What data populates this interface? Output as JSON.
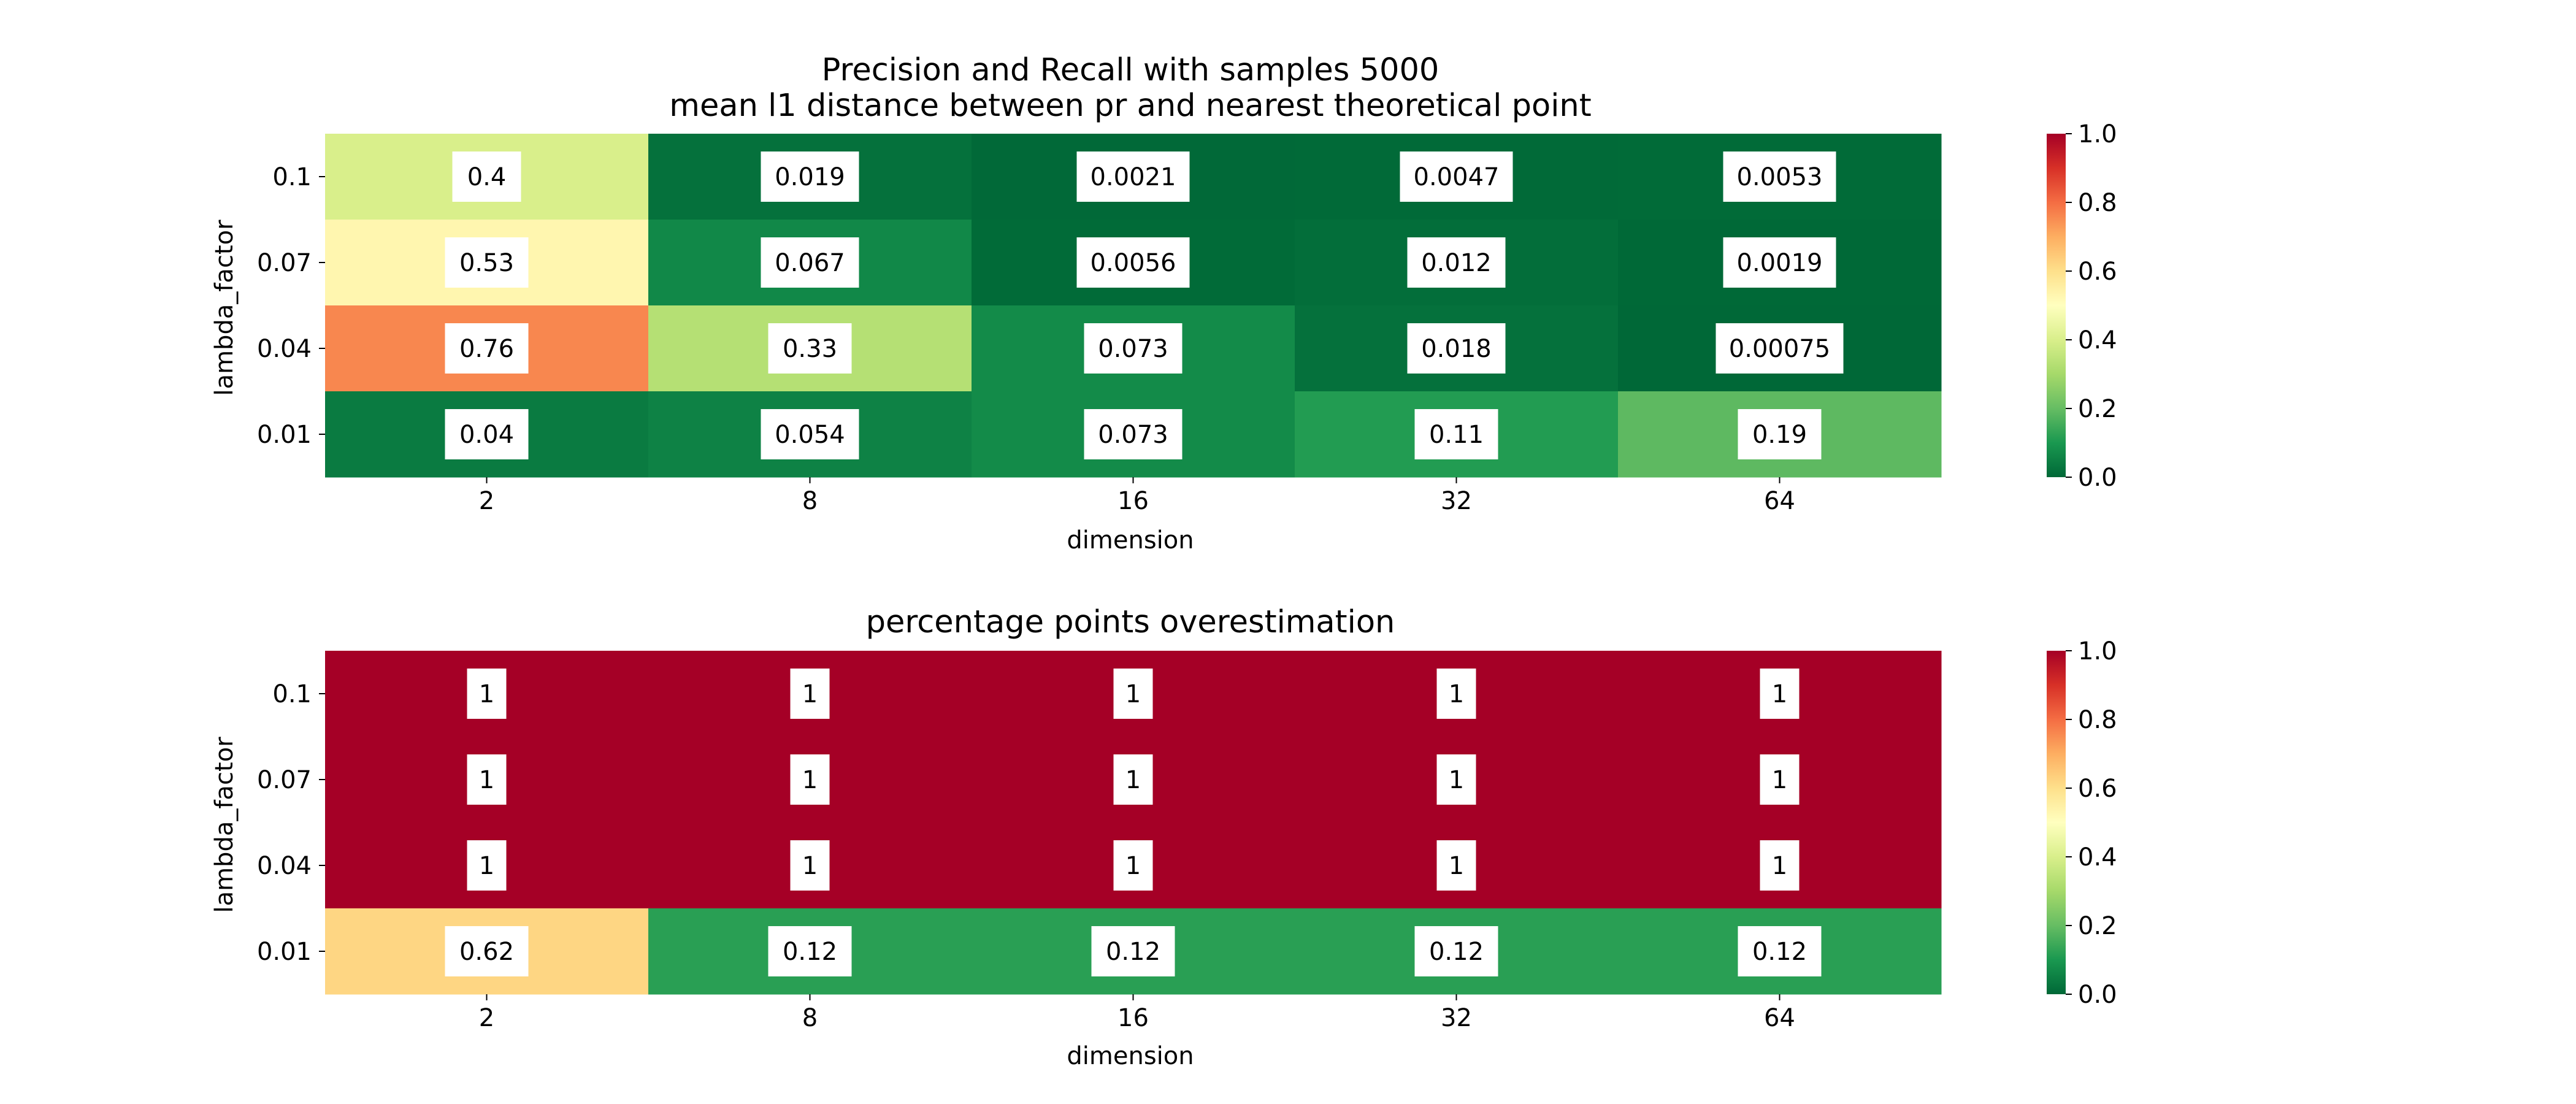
{
  "chart_data": [
    {
      "type": "heatmap",
      "title": "Precision and Recall with samples 5000\nmean l1 distance between pr and nearest theoretical point",
      "xlabel": "dimension",
      "ylabel": "lambda_factor",
      "x_categories": [
        "2",
        "8",
        "16",
        "32",
        "64"
      ],
      "y_categories": [
        "0.1",
        "0.07",
        "0.04",
        "0.01"
      ],
      "values": [
        [
          0.4,
          0.019,
          0.0021,
          0.0047,
          0.0053
        ],
        [
          0.53,
          0.067,
          0.0056,
          0.012,
          0.0019
        ],
        [
          0.76,
          0.33,
          0.073,
          0.018,
          0.00075
        ],
        [
          0.04,
          0.054,
          0.073,
          0.11,
          0.19
        ]
      ],
      "cell_labels": [
        [
          "0.4",
          "0.019",
          "0.0021",
          "0.0047",
          "0.0053"
        ],
        [
          "0.53",
          "0.067",
          "0.0056",
          "0.012",
          "0.0019"
        ],
        [
          "0.76",
          "0.33",
          "0.073",
          "0.018",
          "0.00075"
        ],
        [
          "0.04",
          "0.054",
          "0.073",
          "0.11",
          "0.19"
        ]
      ],
      "colorbar": {
        "range": [
          0.0,
          1.0
        ],
        "ticks": [
          "0.0",
          "0.2",
          "0.4",
          "0.6",
          "0.8",
          "1.0"
        ]
      },
      "colormap": "RdYlGn_r"
    },
    {
      "type": "heatmap",
      "title": "percentage points overestimation",
      "xlabel": "dimension",
      "ylabel": "lambda_factor",
      "x_categories": [
        "2",
        "8",
        "16",
        "32",
        "64"
      ],
      "y_categories": [
        "0.1",
        "0.07",
        "0.04",
        "0.01"
      ],
      "values": [
        [
          1,
          1,
          1,
          1,
          1
        ],
        [
          1,
          1,
          1,
          1,
          1
        ],
        [
          1,
          1,
          1,
          1,
          1
        ],
        [
          0.62,
          0.12,
          0.12,
          0.12,
          0.12
        ]
      ],
      "cell_labels": [
        [
          "1",
          "1",
          "1",
          "1",
          "1"
        ],
        [
          "1",
          "1",
          "1",
          "1",
          "1"
        ],
        [
          "1",
          "1",
          "1",
          "1",
          "1"
        ],
        [
          "0.62",
          "0.12",
          "0.12",
          "0.12",
          "0.12"
        ]
      ],
      "colorbar": {
        "range": [
          0.0,
          1.0
        ],
        "ticks": [
          "0.0",
          "0.2",
          "0.4",
          "0.6",
          "0.8",
          "1.0"
        ]
      },
      "colormap": "RdYlGn_r"
    }
  ]
}
